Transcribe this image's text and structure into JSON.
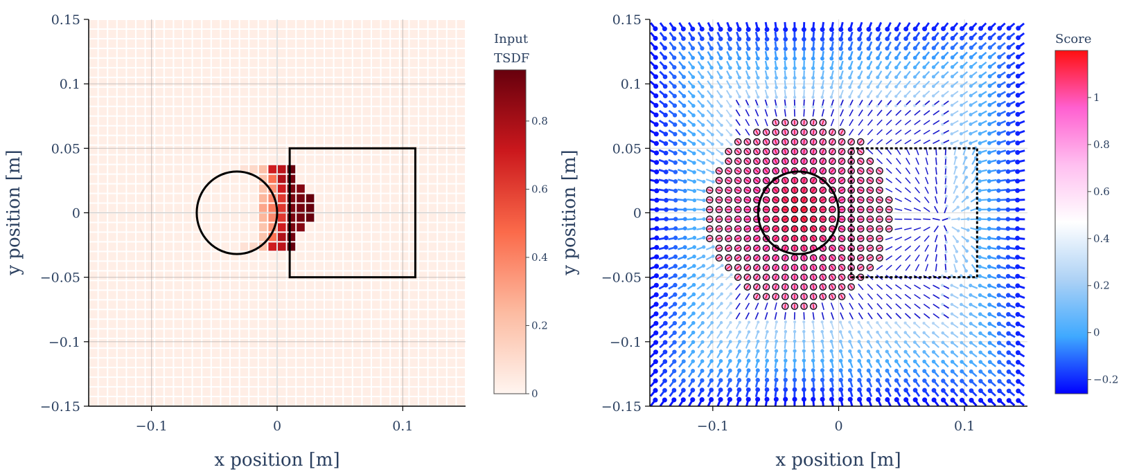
{
  "chart_data": [
    {
      "type": "heatmap",
      "xlabel": "x position [m]",
      "ylabel": "y position [m]",
      "xlim": [
        -0.15,
        0.15
      ],
      "ylim": [
        -0.15,
        0.15
      ],
      "xticks": [
        -0.1,
        0,
        0.1
      ],
      "xtick_labels": [
        "−0.1",
        "0",
        "0.1"
      ],
      "yticks": [
        -0.15,
        -0.1,
        -0.05,
        0,
        0.05,
        0.1,
        0.15
      ],
      "ytick_labels": [
        "−0.15",
        "−0.1",
        "−0.05",
        "0",
        "0.05",
        "0.1",
        "0.15"
      ],
      "grid": true,
      "colorbar": {
        "title": [
          "Input",
          "TSDF"
        ],
        "range": [
          0,
          0.95
        ],
        "ticks": [
          0,
          0.2,
          0.4,
          0.6,
          0.8
        ],
        "tick_labels": [
          "0",
          "0.2",
          "0.4",
          "0.6",
          "0.8"
        ],
        "colorscale": [
          "#fff5f0",
          "#fcbba1",
          "#fb6a4a",
          "#cb181d",
          "#67000d"
        ]
      },
      "grid_cells": {
        "x_start": -0.15,
        "y_start": -0.15,
        "step": 0.0075,
        "nx": 40,
        "ny": 40,
        "default": 0.03,
        "nonzero": [
          {
            "x": -0.03,
            "y": 0.03,
            "v": 0.08
          },
          {
            "x": -0.0225,
            "y": 0.03,
            "v": 0.12
          },
          {
            "x": -0.015,
            "y": 0.03,
            "v": 0.22
          },
          {
            "x": -0.0075,
            "y": 0.03,
            "v": 0.7
          },
          {
            "x": 0.0,
            "y": 0.03,
            "v": 0.75
          },
          {
            "x": 0.0075,
            "y": 0.03,
            "v": 0.95
          },
          {
            "x": -0.015,
            "y": 0.0225,
            "v": 0.2
          },
          {
            "x": -0.0075,
            "y": 0.0225,
            "v": 0.45
          },
          {
            "x": 0.0,
            "y": 0.0225,
            "v": 0.78
          },
          {
            "x": 0.0075,
            "y": 0.0225,
            "v": 0.92
          },
          {
            "x": -0.015,
            "y": 0.015,
            "v": 0.2
          },
          {
            "x": -0.0075,
            "y": 0.015,
            "v": 0.35
          },
          {
            "x": 0.0,
            "y": 0.015,
            "v": 0.7
          },
          {
            "x": 0.0075,
            "y": 0.015,
            "v": 0.9
          },
          {
            "x": 0.015,
            "y": 0.015,
            "v": 0.88
          },
          {
            "x": -0.015,
            "y": 0.0075,
            "v": 0.25
          },
          {
            "x": -0.0075,
            "y": 0.0075,
            "v": 0.38
          },
          {
            "x": 0.0,
            "y": 0.0075,
            "v": 0.62
          },
          {
            "x": 0.0075,
            "y": 0.0075,
            "v": 0.9
          },
          {
            "x": 0.015,
            "y": 0.0075,
            "v": 0.92
          },
          {
            "x": 0.0225,
            "y": 0.0075,
            "v": 0.95
          },
          {
            "x": -0.015,
            "y": 0.0,
            "v": 0.3
          },
          {
            "x": -0.0075,
            "y": 0.0,
            "v": 0.42
          },
          {
            "x": 0.0,
            "y": 0.0,
            "v": 0.62
          },
          {
            "x": 0.0075,
            "y": 0.0,
            "v": 0.9
          },
          {
            "x": 0.015,
            "y": 0.0,
            "v": 0.92
          },
          {
            "x": 0.0225,
            "y": 0.0,
            "v": 0.95
          },
          {
            "x": -0.015,
            "y": -0.0075,
            "v": 0.25
          },
          {
            "x": -0.0075,
            "y": -0.0075,
            "v": 0.38
          },
          {
            "x": 0.0,
            "y": -0.0075,
            "v": 0.62
          },
          {
            "x": 0.0075,
            "y": -0.0075,
            "v": 0.9
          },
          {
            "x": 0.015,
            "y": -0.0075,
            "v": 0.92
          },
          {
            "x": 0.0225,
            "y": -0.0075,
            "v": 0.95
          },
          {
            "x": -0.015,
            "y": -0.015,
            "v": 0.2
          },
          {
            "x": -0.0075,
            "y": -0.015,
            "v": 0.35
          },
          {
            "x": 0.0,
            "y": -0.015,
            "v": 0.7
          },
          {
            "x": 0.0075,
            "y": -0.015,
            "v": 0.9
          },
          {
            "x": 0.015,
            "y": -0.015,
            "v": 0.88
          },
          {
            "x": -0.015,
            "y": -0.0225,
            "v": 0.2
          },
          {
            "x": -0.0075,
            "y": -0.0225,
            "v": 0.45
          },
          {
            "x": 0.0,
            "y": -0.0225,
            "v": 0.78
          },
          {
            "x": 0.0075,
            "y": -0.0225,
            "v": 0.92
          },
          {
            "x": -0.03,
            "y": -0.03,
            "v": 0.08
          },
          {
            "x": -0.0225,
            "y": -0.03,
            "v": 0.12
          },
          {
            "x": -0.015,
            "y": -0.03,
            "v": 0.22
          },
          {
            "x": -0.0075,
            "y": -0.03,
            "v": 0.7
          },
          {
            "x": 0.0,
            "y": -0.03,
            "v": 0.75
          },
          {
            "x": 0.0075,
            "y": -0.03,
            "v": 0.95
          }
        ]
      },
      "shapes": [
        {
          "kind": "circle",
          "cx": -0.032,
          "cy": 0.0,
          "r": 0.032,
          "style": "solid"
        },
        {
          "kind": "rect",
          "x0": 0.01,
          "y0": -0.05,
          "x1": 0.11,
          "y1": 0.05,
          "style": "solid"
        }
      ]
    },
    {
      "type": "scatter",
      "xlabel": "x position [m]",
      "ylabel": "y position [m]",
      "xlim": [
        -0.15,
        0.15
      ],
      "ylim": [
        -0.15,
        0.15
      ],
      "xticks": [
        -0.1,
        0,
        0.1
      ],
      "xtick_labels": [
        "−0.1",
        "0",
        "0.1"
      ],
      "yticks": [
        -0.15,
        -0.1,
        -0.05,
        0,
        0.05,
        0.1,
        0.15
      ],
      "ytick_labels": [
        "−0.15",
        "−0.1",
        "−0.05",
        "0",
        "0.05",
        "0.1",
        "0.15"
      ],
      "grid": true,
      "colorbar": {
        "title": [
          "Score"
        ],
        "range": [
          -0.26,
          1.2
        ],
        "ticks": [
          -0.2,
          0,
          0.2,
          0.4,
          0.6,
          0.8,
          1
        ],
        "tick_labels": [
          "−0.2",
          "0",
          "0.2",
          "0.4",
          "0.6",
          "0.8",
          "1"
        ],
        "colorscale": [
          "#0000ff",
          "#3fa9ff",
          "#aed2f5",
          "#ffffff",
          "#ffbff0",
          "#ff60d0",
          "#ff1010"
        ]
      },
      "vector_field": {
        "x_start": -0.1475,
        "y_start": -0.1475,
        "step": 0.0075,
        "nx": 40,
        "ny": 40,
        "source": {
          "x": -0.032,
          "y": 0.0
        },
        "sink": {
          "x": 0.082,
          "y": -0.006
        }
      },
      "highlight_region": {
        "cx": -0.032,
        "cy": 0.0,
        "r": 0.074
      },
      "shapes": [
        {
          "kind": "circle",
          "cx": -0.032,
          "cy": 0.0,
          "r": 0.032,
          "style": "solid"
        },
        {
          "kind": "rect",
          "x0": 0.01,
          "y0": -0.05,
          "x1": 0.11,
          "y1": 0.05,
          "style": "dashed"
        }
      ]
    }
  ]
}
